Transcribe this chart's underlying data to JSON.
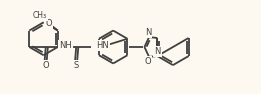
{
  "bg_color": "#fdf8f0",
  "bond_color": "#404040",
  "lw": 1.3,
  "fs": 6.0,
  "fig_w": 2.61,
  "fig_h": 0.94,
  "xlim": [
    -0.3,
    10.8
  ],
  "ylim": [
    0.2,
    4.2
  ]
}
